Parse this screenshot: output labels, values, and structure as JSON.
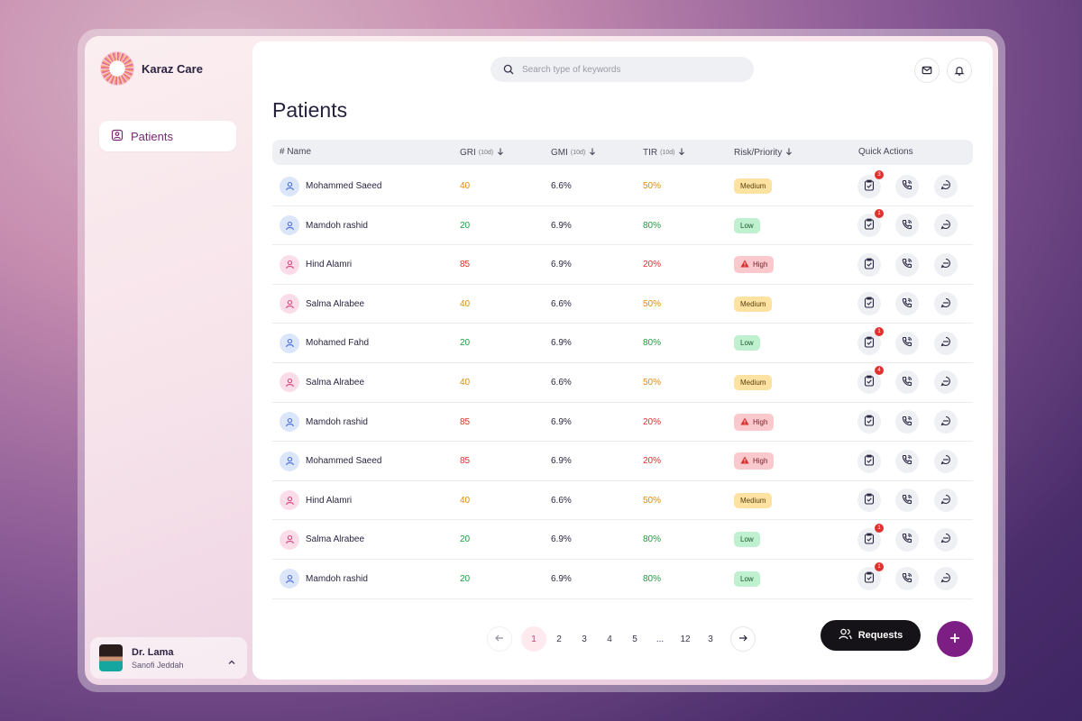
{
  "brand": {
    "name": "Karaz Care"
  },
  "sidebar": {
    "items": [
      {
        "label": "Patients",
        "icon": "patient-card-icon"
      }
    ]
  },
  "user": {
    "name": "Dr. Lama",
    "org": "Sanofi Jeddah"
  },
  "search": {
    "placeholder": "Search type of keywords"
  },
  "page": {
    "title": "Patients"
  },
  "table": {
    "columns": {
      "name": "# Name",
      "gri": "GRI",
      "gri_sub": "(10d)",
      "gmi": "GMI",
      "gmi_sub": "(10d)",
      "tir": "TIR",
      "tir_sub": "(10d)",
      "risk": "Risk/Priority",
      "actions": "Quick Actions"
    },
    "rows": [
      {
        "name": "Mohammed Saeed",
        "gender": "m",
        "gri": "40",
        "gmi": "6.6%",
        "tir": "50%",
        "risk": "Medium",
        "level": "medium",
        "tasks": "3"
      },
      {
        "name": "Mamdoh rashid",
        "gender": "m",
        "gri": "20",
        "gmi": "6.9%",
        "tir": "80%",
        "risk": "Low",
        "level": "low",
        "tasks": "1"
      },
      {
        "name": "Hind Alamri",
        "gender": "f",
        "gri": "85",
        "gmi": "6.9%",
        "tir": "20%",
        "risk": "High",
        "level": "high",
        "tasks": ""
      },
      {
        "name": "Salma Alrabee",
        "gender": "f",
        "gri": "40",
        "gmi": "6.6%",
        "tir": "50%",
        "risk": "Medium",
        "level": "medium",
        "tasks": ""
      },
      {
        "name": "Mohamed Fahd",
        "gender": "m",
        "gri": "20",
        "gmi": "6.9%",
        "tir": "80%",
        "risk": "Low",
        "level": "low",
        "tasks": "1"
      },
      {
        "name": "Salma Alrabee",
        "gender": "f",
        "gri": "40",
        "gmi": "6.6%",
        "tir": "50%",
        "risk": "Medium",
        "level": "medium",
        "tasks": "4"
      },
      {
        "name": "Mamdoh rashid",
        "gender": "m",
        "gri": "85",
        "gmi": "6.9%",
        "tir": "20%",
        "risk": "High",
        "level": "high",
        "tasks": ""
      },
      {
        "name": "Mohammed Saeed",
        "gender": "m",
        "gri": "85",
        "gmi": "6.9%",
        "tir": "20%",
        "risk": "High",
        "level": "high",
        "tasks": ""
      },
      {
        "name": "Hind Alamri",
        "gender": "f",
        "gri": "40",
        "gmi": "6.6%",
        "tir": "50%",
        "risk": "Medium",
        "level": "medium",
        "tasks": ""
      },
      {
        "name": "Salma Alrabee",
        "gender": "f",
        "gri": "20",
        "gmi": "6.9%",
        "tir": "80%",
        "risk": "Low",
        "level": "low",
        "tasks": "1"
      },
      {
        "name": "Mamdoh rashid",
        "gender": "m",
        "gri": "20",
        "gmi": "6.9%",
        "tir": "80%",
        "risk": "Low",
        "level": "low",
        "tasks": "1"
      }
    ]
  },
  "pagination": {
    "pages": [
      "1",
      "2",
      "3",
      "4",
      "5",
      "...",
      "12",
      "3"
    ],
    "current": "1"
  },
  "actions": {
    "requests_label": "Requests"
  },
  "colors": {
    "medium": "#e08a0b",
    "low": "#1f9a3e",
    "high": "#d8302f",
    "accent": "#7d1e85"
  }
}
